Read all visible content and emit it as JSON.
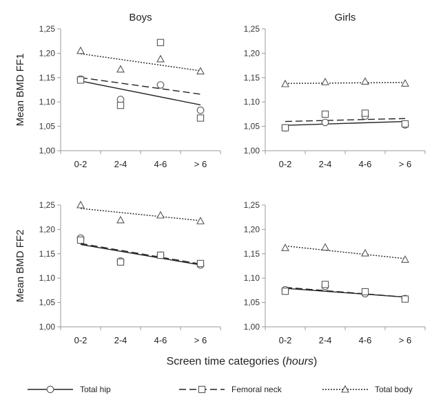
{
  "chart_data": [
    {
      "type": "scatter",
      "title": "Boys",
      "ylabel": "Mean BMD FF1",
      "categories": [
        "0-2",
        "2-4",
        "4-6",
        "> 6"
      ],
      "ylim": [
        1.0,
        1.25
      ],
      "yticks": [
        "1,00",
        "1,05",
        "1,10",
        "1,15",
        "1,20",
        "1,25"
      ],
      "series": [
        {
          "name": "Total hip",
          "marker": "circle",
          "values": [
            1.147,
            1.105,
            1.135,
            1.083
          ],
          "trend": [
            1.143,
            1.094
          ]
        },
        {
          "name": "Femoral neck",
          "marker": "square",
          "values": [
            1.145,
            1.093,
            1.222,
            1.067
          ],
          "trend": [
            1.15,
            1.116
          ]
        },
        {
          "name": "Total body",
          "marker": "triangle",
          "values": [
            1.205,
            1.167,
            1.188,
            1.163
          ],
          "trend": [
            1.199,
            1.164
          ]
        }
      ]
    },
    {
      "type": "scatter",
      "title": "Girls",
      "ylabel": "",
      "categories": [
        "0-2",
        "2-4",
        "4-6",
        "> 6"
      ],
      "ylim": [
        1.0,
        1.25
      ],
      "yticks": [
        "1,00",
        "1,05",
        "1,10",
        "1,15",
        "1,20",
        "1,25"
      ],
      "series": [
        {
          "name": "Total hip",
          "marker": "circle",
          "values": [
            1.047,
            1.058,
            1.071,
            1.053
          ],
          "trend": [
            1.052,
            1.06
          ]
        },
        {
          "name": "Femoral neck",
          "marker": "square",
          "values": [
            1.047,
            1.075,
            1.077,
            1.055
          ],
          "trend": [
            1.06,
            1.066
          ]
        },
        {
          "name": "Total body",
          "marker": "triangle",
          "values": [
            1.137,
            1.141,
            1.142,
            1.138
          ],
          "trend": [
            1.138,
            1.14
          ]
        }
      ]
    },
    {
      "type": "scatter",
      "title": "",
      "ylabel": "Mean BMD FF2",
      "categories": [
        "0-2",
        "2-4",
        "4-6",
        "> 6"
      ],
      "ylim": [
        1.0,
        1.25
      ],
      "yticks": [
        "1,00",
        "1,05",
        "1,10",
        "1,15",
        "1,20",
        "1,25"
      ],
      "series": [
        {
          "name": "Total hip",
          "marker": "circle",
          "values": [
            1.182,
            1.135,
            1.147,
            1.127
          ],
          "trend": [
            1.169,
            1.127
          ]
        },
        {
          "name": "Femoral neck",
          "marker": "square",
          "values": [
            1.178,
            1.133,
            1.147,
            1.13
          ],
          "trend": [
            1.171,
            1.129
          ]
        },
        {
          "name": "Total body",
          "marker": "triangle",
          "values": [
            1.25,
            1.219,
            1.229,
            1.217
          ],
          "trend": [
            1.243,
            1.218
          ]
        }
      ]
    },
    {
      "type": "scatter",
      "title": "",
      "ylabel": "",
      "categories": [
        "0-2",
        "2-4",
        "4-6",
        "> 6"
      ],
      "ylim": [
        1.0,
        1.25
      ],
      "yticks": [
        "1,00",
        "1,05",
        "1,10",
        "1,15",
        "1,20",
        "1,25"
      ],
      "series": [
        {
          "name": "Total hip",
          "marker": "circle",
          "values": [
            1.076,
            1.083,
            1.068,
            1.058
          ],
          "trend": [
            1.079,
            1.061
          ]
        },
        {
          "name": "Femoral neck",
          "marker": "square",
          "values": [
            1.073,
            1.087,
            1.072,
            1.057
          ],
          "trend": [
            1.081,
            1.061
          ]
        },
        {
          "name": "Total body",
          "marker": "triangle",
          "values": [
            1.162,
            1.163,
            1.151,
            1.138
          ],
          "trend": [
            1.166,
            1.14
          ]
        }
      ]
    }
  ],
  "xlabel_main": "Screen time categories (",
  "xlabel_italic": "hours",
  "xlabel_end": ")",
  "legend": [
    {
      "name": "Total hip",
      "marker": "circle",
      "dash": ""
    },
    {
      "name": "Femoral neck",
      "marker": "square",
      "dash": "10,5"
    },
    {
      "name": "Total body",
      "marker": "triangle",
      "dash": "2,2"
    }
  ]
}
